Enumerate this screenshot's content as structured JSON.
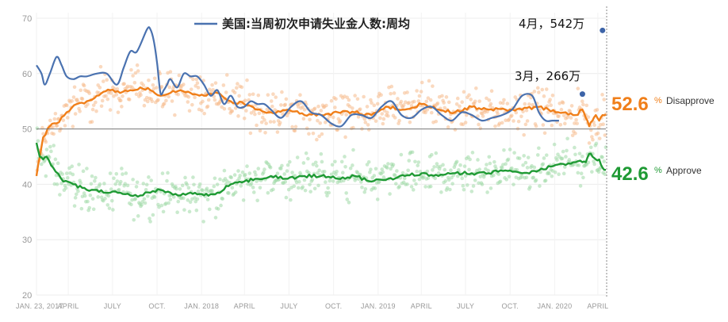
{
  "chart_data": {
    "type": "line",
    "title": "",
    "legend_label": "美国:当周初次申请失业金人数:周均",
    "y_ticks": [
      "20",
      "30",
      "40",
      "50",
      "60",
      "70"
    ],
    "ylim": [
      20,
      71
    ],
    "x_ticks": [
      "JAN. 23, 2017",
      "APRIL",
      "JULY",
      "OCT.",
      "JAN. 2018",
      "APRIL",
      "JULY",
      "OCT.",
      "JAN. 2019",
      "APRIL",
      "JULY",
      "OCT.",
      "JAN. 2020",
      "APRIL"
    ],
    "x_tick_positions": [
      0,
      9.5,
      22.7,
      36,
      49.3,
      62.1,
      75.4,
      88.7,
      102,
      114.9,
      128.1,
      141.4,
      154.7,
      167.6
    ],
    "x_range_weeks": [
      0,
      170
    ],
    "reference_line_y": 50,
    "series": [
      {
        "name": "Disapprove",
        "color": "#f07f1a",
        "end_value": "52.6",
        "x": [
          0,
          1,
          2,
          4,
          6,
          9,
          12,
          15,
          18,
          22,
          25,
          28,
          31,
          34,
          37,
          40,
          43,
          46,
          50,
          54,
          58,
          62,
          66,
          70,
          75,
          80,
          85,
          90,
          95,
          100,
          105,
          110,
          115,
          120,
          125,
          130,
          135,
          140,
          145,
          150,
          155,
          158,
          161,
          163,
          164,
          165,
          166,
          167,
          168,
          169,
          170
        ],
        "y": [
          41.5,
          45,
          48.5,
          50.5,
          51,
          53,
          54.5,
          55,
          56,
          57,
          56.5,
          57,
          57.5,
          57,
          56,
          56.5,
          57,
          56.5,
          56,
          56.5,
          55,
          54.5,
          53.5,
          53,
          53.5,
          52.5,
          52.5,
          53,
          53,
          52.5,
          54,
          53.5,
          54.5,
          53.5,
          53,
          54,
          53.5,
          53.5,
          53.5,
          54,
          53,
          53,
          52.5,
          53.5,
          52,
          50.5,
          51.5,
          52.5,
          51.5,
          52.5,
          52.6
        ]
      },
      {
        "name": "Approve",
        "color": "#1f9a34",
        "end_value": "42.6",
        "x": [
          0,
          1,
          2,
          3,
          5,
          8,
          11,
          15,
          18,
          22,
          25,
          28,
          31,
          34,
          37,
          40,
          43,
          46,
          50,
          54,
          58,
          62,
          66,
          70,
          75,
          80,
          85,
          90,
          95,
          100,
          105,
          110,
          115,
          120,
          125,
          130,
          135,
          140,
          145,
          150,
          155,
          158,
          161,
          163,
          164,
          165,
          166,
          167,
          168,
          169,
          170
        ],
        "y": [
          47.5,
          45,
          44.5,
          45,
          43,
          40.5,
          40,
          39,
          39,
          38.5,
          38.5,
          38,
          38,
          38.5,
          39,
          38.5,
          38,
          38.5,
          38,
          38.5,
          40,
          40.5,
          41,
          41.5,
          41,
          41.5,
          41.5,
          41,
          41.5,
          40.5,
          41,
          41.5,
          42,
          41.5,
          42,
          42,
          42,
          42.5,
          42,
          42.5,
          43.5,
          43.5,
          44,
          44,
          44,
          45.5,
          45,
          44.5,
          44.5,
          43,
          42.6
        ]
      },
      {
        "name": "美国:当周初次申请失业金人数:周均",
        "color": "#4a72b0",
        "x": [
          0,
          1.5,
          2.5,
          4,
          6,
          7.5,
          9,
          11,
          13,
          15,
          18,
          21,
          24,
          26,
          28,
          30,
          33,
          34,
          35,
          36,
          37,
          38,
          39,
          40,
          42,
          44,
          46,
          48,
          50,
          52,
          54,
          56,
          58,
          60,
          62,
          64,
          66,
          68,
          70,
          73,
          76,
          79,
          82,
          85,
          88,
          91,
          94,
          97,
          100,
          103,
          106,
          109,
          112,
          115,
          118,
          121,
          124,
          127,
          130,
          133,
          136,
          139,
          142,
          145,
          148,
          150,
          152,
          154,
          156
        ],
        "y": [
          61.5,
          60,
          58,
          60,
          63,
          61.5,
          59.5,
          59,
          59.5,
          59.5,
          60,
          60,
          58,
          61,
          64,
          64,
          68,
          68,
          66,
          62,
          56.5,
          57,
          58,
          59,
          57.5,
          60,
          59.5,
          59.5,
          58,
          56,
          57,
          54.5,
          56,
          54,
          54,
          55,
          54.5,
          54.5,
          53.5,
          52,
          54,
          55,
          53,
          52.5,
          51,
          50.5,
          52.5,
          52.5,
          52,
          54,
          55,
          52.5,
          52,
          53.5,
          54,
          52.5,
          51.5,
          53,
          52.5,
          51.5,
          52,
          52.5,
          53.5,
          56,
          56,
          53,
          51.5,
          51.5,
          51.5
        ]
      }
    ],
    "annotations": [
      {
        "text": "3月，266万",
        "dot_x": 163,
        "dot_y": 56.3
      },
      {
        "text": "4月，542万",
        "dot_x": 169,
        "dot_y": 67.8
      }
    ],
    "series_end_labels": {
      "disapprove_label": "Disapprove",
      "approve_label": "Approve",
      "percent_sign": "%"
    },
    "poll_dot_colors": {
      "disapprove": "#f5b98a",
      "approve": "#9fd8a6"
    },
    "grid": true,
    "legend_position": "top-center"
  }
}
